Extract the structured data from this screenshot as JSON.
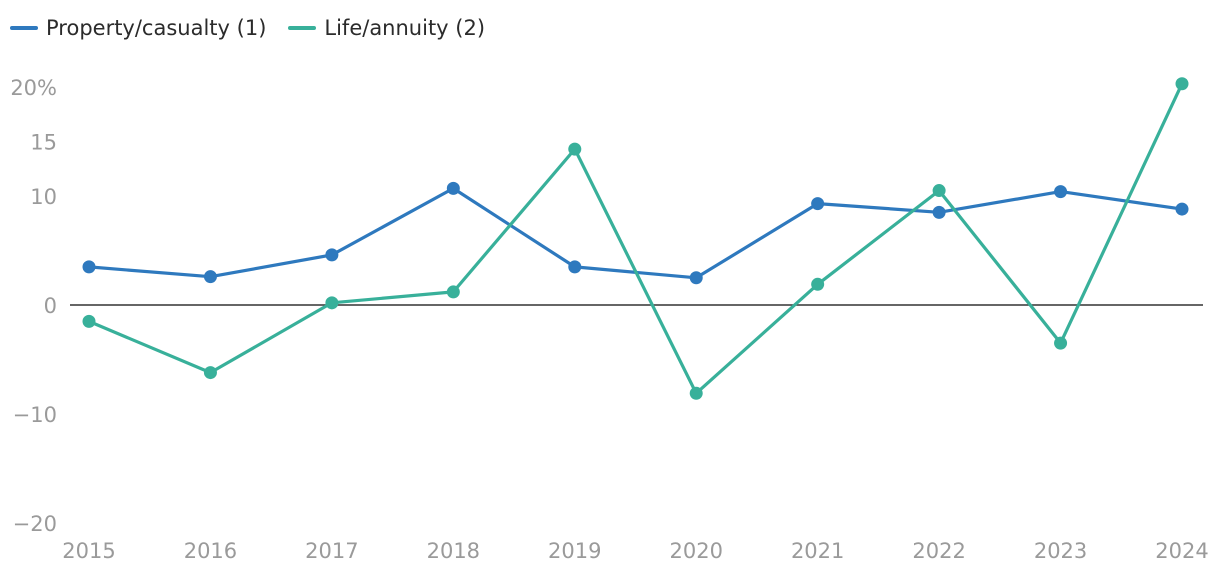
{
  "chart_data": {
    "type": "line",
    "x": [
      "2015",
      "2016",
      "2017",
      "2018",
      "2019",
      "2020",
      "2021",
      "2022",
      "2023",
      "2024"
    ],
    "series": [
      {
        "name": "Property/casualty (1)",
        "color": "#2e79be",
        "values": [
          3.5,
          2.6,
          4.6,
          10.7,
          3.5,
          2.5,
          9.3,
          8.5,
          10.4,
          8.8
        ]
      },
      {
        "name": "Life/annuity (2)",
        "color": "#38b09a",
        "values": [
          -1.5,
          -6.2,
          0.2,
          1.2,
          14.3,
          -8.1,
          1.9,
          10.5,
          -3.5,
          20.3
        ]
      }
    ],
    "ylim": [
      -20,
      20
    ],
    "yticks": [
      {
        "value": 20,
        "label": "20%"
      },
      {
        "value": 15,
        "label": "15"
      },
      {
        "value": 10,
        "label": "10"
      },
      {
        "value": 0,
        "label": "0"
      },
      {
        "value": -10,
        "label": "−10"
      },
      {
        "value": -20,
        "label": "−20"
      }
    ],
    "legend_position": "top-left",
    "grid": false
  }
}
